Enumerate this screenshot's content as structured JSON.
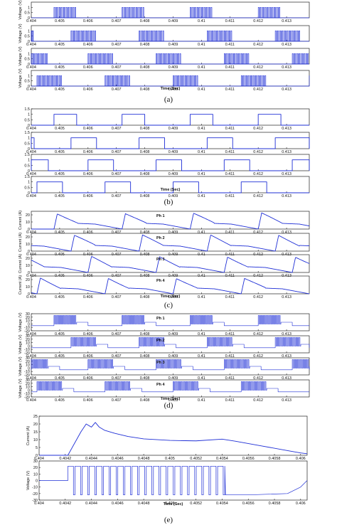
{
  "colors": {
    "line": "#1f2fd6",
    "axis": "#222222",
    "grid": "#dddddd"
  },
  "captions": [
    "(a)",
    "(b)",
    "(c)",
    "(d)",
    "(e)"
  ],
  "chart_data": [
    {
      "type": "line",
      "panel": "(a)",
      "xlabel": "Time (Sec)",
      "ylabel": "Voltage (V)",
      "x_ticks": [
        "0.404",
        "0.405",
        "0.406",
        "0.407",
        "0.408",
        "0.409",
        "0.41",
        "0.411",
        "0.412",
        "0.413"
      ],
      "xlim": [
        0.404,
        0.4138
      ],
      "y_ticks": [
        "0",
        "0.5",
        "1"
      ],
      "ylim": [
        0,
        1.5
      ],
      "series": [
        {
          "pattern": "pwm",
          "high": 1,
          "bursts": [
            [
              0.4048,
              0.4056
            ],
            [
              0.4072,
              0.408
            ],
            [
              0.4096,
              0.4104
            ],
            [
              0.412,
              0.4128
            ]
          ]
        },
        {
          "pattern": "pwm",
          "high": 1,
          "bursts": [
            [
              0.404,
              0.4041
            ],
            [
              0.4054,
              0.4063
            ],
            [
              0.4078,
              0.4087
            ],
            [
              0.4102,
              0.4111
            ],
            [
              0.4126,
              0.4135
            ]
          ]
        },
        {
          "pattern": "pwm",
          "high": 1,
          "bursts": [
            [
              0.404,
              0.4046
            ],
            [
              0.406,
              0.4069
            ],
            [
              0.4084,
              0.4093
            ],
            [
              0.4108,
              0.4117
            ],
            [
              0.4132,
              0.4138
            ]
          ]
        },
        {
          "pattern": "pwm",
          "high": 1,
          "bursts": [
            [
              0.4042,
              0.4051
            ],
            [
              0.4066,
              0.4075
            ],
            [
              0.409,
              0.4099
            ],
            [
              0.4114,
              0.4123
            ],
            [
              0.4138,
              0.4138
            ]
          ]
        }
      ]
    },
    {
      "type": "line",
      "panel": "(b)",
      "xlabel": "Time (Sec)",
      "ylabel": "",
      "x_ticks": [
        "0.404",
        "0.405",
        "0.406",
        "0.407",
        "0.408",
        "0.409",
        "0.41",
        "0.411",
        "0.412",
        "0.413"
      ],
      "xlim": [
        0.404,
        0.4138
      ],
      "y_ticks": [
        "0",
        "0.5",
        "1",
        "1.5"
      ],
      "ylim": [
        0,
        1.5
      ],
      "series": [
        {
          "pattern": "square",
          "high": 1,
          "pulses": [
            [
              0.4048,
              0.4056
            ],
            [
              0.4072,
              0.408
            ],
            [
              0.4096,
              0.4104
            ],
            [
              0.412,
              0.4128
            ]
          ]
        },
        {
          "pattern": "square",
          "high": 1,
          "pulses": [
            [
              0.404,
              0.4041
            ],
            [
              0.4054,
              0.4063
            ],
            [
              0.4078,
              0.4087
            ],
            [
              0.4102,
              0.4111
            ],
            [
              0.4126,
              0.4138
            ]
          ]
        },
        {
          "pattern": "square",
          "high": 1,
          "pulses": [
            [
              0.404,
              0.4046
            ],
            [
              0.406,
              0.4069
            ],
            [
              0.4084,
              0.4093
            ],
            [
              0.4108,
              0.4117
            ],
            [
              0.4132,
              0.4138
            ]
          ]
        },
        {
          "pattern": "square",
          "high": 1,
          "pulses": [
            [
              0.4042,
              0.4051
            ],
            [
              0.4066,
              0.4075
            ],
            [
              0.409,
              0.4099
            ],
            [
              0.4114,
              0.4123
            ]
          ]
        }
      ]
    },
    {
      "type": "line",
      "panel": "(c)",
      "xlabel": "Time (Sec)",
      "ylabel": "Current (A)",
      "x_ticks": [
        "0.404",
        "0.405",
        "0.406",
        "0.407",
        "0.408",
        "0.409",
        "0.41",
        "0.411",
        "0.412",
        "0.413"
      ],
      "xlim": [
        0.404,
        0.4138
      ],
      "y_ticks": [
        "0",
        "10",
        "20"
      ],
      "ylim": [
        0,
        25
      ],
      "series": [
        {
          "name": "Ph 1",
          "pattern": "current",
          "peak": 22,
          "starts": [
            0.4048,
            0.4072,
            0.4096,
            0.412
          ]
        },
        {
          "name": "Ph 2",
          "pattern": "current",
          "peak": 22,
          "starts": [
            0.403,
            0.4054,
            0.4078,
            0.4102,
            0.4126
          ]
        },
        {
          "name": "Ph 3",
          "pattern": "current",
          "peak": 22,
          "starts": [
            0.4036,
            0.406,
            0.4084,
            0.4108,
            0.4132
          ]
        },
        {
          "name": "Ph 4",
          "pattern": "current",
          "peak": 22,
          "starts": [
            0.4018,
            0.4042,
            0.4066,
            0.409,
            0.4114
          ]
        }
      ]
    },
    {
      "type": "line",
      "panel": "(d)",
      "xlabel": "Time (Sec)",
      "ylabel": "Voltage (V)",
      "x_ticks": [
        "0.404",
        "0.405",
        "0.406",
        "0.407",
        "0.408",
        "0.409",
        "0.41",
        "0.411",
        "0.412",
        "0.413"
      ],
      "xlim": [
        0.404,
        0.4138
      ],
      "y_ticks": [
        "-20",
        "-10",
        "0",
        "10",
        "20",
        "30"
      ],
      "ylim": [
        -20,
        30
      ],
      "series": [
        {
          "name": "Ph 1",
          "pattern": "phasevolt",
          "bursts": [
            [
              0.4048,
              0.4056
            ],
            [
              0.4072,
              0.408
            ],
            [
              0.4096,
              0.4104
            ],
            [
              0.412,
              0.4128
            ]
          ]
        },
        {
          "name": "Ph 2",
          "pattern": "phasevolt",
          "bursts": [
            [
              0.4054,
              0.4063
            ],
            [
              0.4078,
              0.4087
            ],
            [
              0.4102,
              0.4111
            ],
            [
              0.4126,
              0.4135
            ]
          ]
        },
        {
          "name": "Ph 3",
          "pattern": "phasevolt",
          "bursts": [
            [
              0.404,
              0.4046
            ],
            [
              0.406,
              0.4069
            ],
            [
              0.4084,
              0.4093
            ],
            [
              0.4108,
              0.4117
            ],
            [
              0.4132,
              0.4138
            ]
          ]
        },
        {
          "name": "Ph 4",
          "pattern": "phasevolt",
          "bursts": [
            [
              0.4042,
              0.4051
            ],
            [
              0.4066,
              0.4075
            ],
            [
              0.409,
              0.4099
            ],
            [
              0.4114,
              0.4123
            ]
          ]
        }
      ]
    },
    {
      "type": "line",
      "panel": "(e) top",
      "xlabel": "Time (Sec)",
      "ylabel": "Current (A)",
      "x_ticks": [
        "0.404",
        "0.4042",
        "0.4044",
        "0.4046",
        "0.4048",
        "0.405",
        "0.4052",
        "0.4054",
        "0.4056",
        "0.4058",
        "0.406"
      ],
      "xlim": [
        0.404,
        0.40605
      ],
      "y_ticks": [
        "0",
        "5",
        "10",
        "15",
        "20",
        "25"
      ],
      "ylim": [
        0,
        25
      ],
      "points": [
        [
          0.404,
          0
        ],
        [
          0.40422,
          0
        ],
        [
          0.40432,
          15
        ],
        [
          0.40436,
          20
        ],
        [
          0.4044,
          18
        ],
        [
          0.40443,
          21
        ],
        [
          0.40446,
          18
        ],
        [
          0.4045,
          16
        ],
        [
          0.40458,
          14
        ],
        [
          0.40468,
          12
        ],
        [
          0.4048,
          10.5
        ],
        [
          0.405,
          9.5
        ],
        [
          0.4052,
          9.2
        ],
        [
          0.4054,
          10.3
        ],
        [
          0.4055,
          9
        ],
        [
          0.4057,
          6
        ],
        [
          0.4059,
          3
        ],
        [
          0.406,
          1.5
        ],
        [
          0.40605,
          1
        ]
      ]
    },
    {
      "type": "line",
      "panel": "(e) bottom",
      "xlabel": "Time (Sec)",
      "ylabel": "Voltage (V)",
      "x_ticks": [
        "0.404",
        "0.4042",
        "0.4044",
        "0.4046",
        "0.4048",
        "0.405",
        "0.4052",
        "0.4054",
        "0.4056",
        "0.4058",
        "0.406"
      ],
      "xlim": [
        0.404,
        0.40605
      ],
      "y_ticks": [
        "-30",
        "-20",
        "-10",
        "0",
        "10",
        "20",
        "30"
      ],
      "ylim": [
        -30,
        30
      ],
      "burst": [
        0.40422,
        0.40542
      ],
      "high": 22,
      "low": -22,
      "base": 0
    }
  ]
}
